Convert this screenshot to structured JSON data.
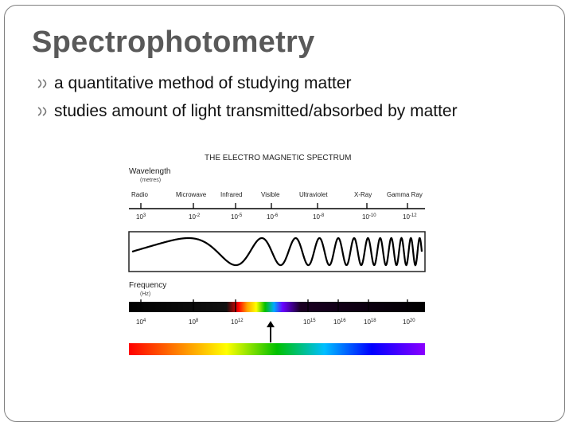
{
  "slide": {
    "title": "Spectrophotometry",
    "bullets": [
      "a quantitative method of studying matter",
      "studies amount of light transmitted/absorbed by matter"
    ]
  },
  "figure": {
    "title": "THE ELECTRO MAGNETIC SPECTRUM",
    "wavelength_label": "Wavelength",
    "wavelength_unit": "(metres)",
    "regions": [
      "Radio",
      "Microwave",
      "Infrared",
      "Visible",
      "Ultraviolet",
      "X-Ray",
      "Gamma Ray"
    ],
    "wavelength_ticks": [
      {
        "base": "10",
        "exp": "3"
      },
      {
        "base": "10",
        "exp": "-2"
      },
      {
        "base": "10",
        "exp": "-5"
      },
      {
        "base": "10",
        "exp": "-6"
      },
      {
        "base": "10",
        "exp": "-8"
      },
      {
        "base": "10",
        "exp": "-10"
      },
      {
        "base": "10",
        "exp": "-12"
      }
    ],
    "frequency_label": "Frequency",
    "frequency_unit": "(Hz)",
    "frequency_ticks": [
      {
        "base": "10",
        "exp": "4"
      },
      {
        "base": "10",
        "exp": "8"
      },
      {
        "base": "10",
        "exp": "12"
      },
      {
        "base": "10",
        "exp": "15"
      },
      {
        "base": "10",
        "exp": "16"
      },
      {
        "base": "10",
        "exp": "18"
      },
      {
        "base": "10",
        "exp": "20"
      }
    ],
    "colors": {
      "bar_dark": "#000000",
      "rainbow": [
        "#ff0000",
        "#ff8c00",
        "#ffff00",
        "#00c000",
        "#00bfff",
        "#0000ff",
        "#8b00ff"
      ]
    }
  }
}
